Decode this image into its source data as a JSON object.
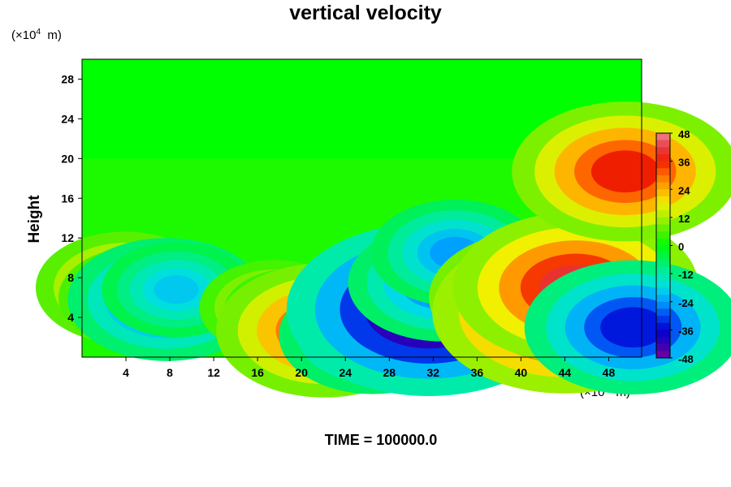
{
  "chart_data": {
    "type": "heatmap",
    "title": "vertical velocity",
    "xlabel": "",
    "ylabel": "Height",
    "x_unit": "m",
    "y_unit": "m",
    "unit_scale_base": "10",
    "unit_scale_exp": "4",
    "xlim": [
      0,
      51
    ],
    "ylim": [
      0,
      30
    ],
    "x_ticks": [
      4,
      8,
      12,
      16,
      20,
      24,
      28,
      32,
      36,
      40,
      44,
      48
    ],
    "y_ticks": [
      4,
      8,
      12,
      16,
      20,
      24,
      28
    ],
    "colorbar": {
      "ticks": [
        48,
        36,
        24,
        12,
        0,
        -12,
        -24,
        -36,
        -48
      ],
      "range": [
        -48,
        48
      ],
      "levels": 32
    },
    "features": [
      {
        "x": 3.9,
        "y": 7.0,
        "value": 26
      },
      {
        "x": 5.1,
        "y": 6.0,
        "value": 22
      },
      {
        "x": 7.7,
        "y": 5.8,
        "value": -30
      },
      {
        "x": 8.6,
        "y": 6.8,
        "value": -20
      },
      {
        "x": 17.5,
        "y": 5.0,
        "value": 20
      },
      {
        "x": 19.2,
        "y": 4.4,
        "value": 18
      },
      {
        "x": 22.1,
        "y": 2.7,
        "value": 34
      },
      {
        "x": 26.5,
        "y": 2.2,
        "value": -28
      },
      {
        "x": 31.6,
        "y": 4.8,
        "value": -48
      },
      {
        "x": 32.8,
        "y": 7.5,
        "value": -28
      },
      {
        "x": 34.0,
        "y": 10.5,
        "value": -24
      },
      {
        "x": 41.5,
        "y": 6.0,
        "value": 34
      },
      {
        "x": 44.0,
        "y": 4.5,
        "value": 44
      },
      {
        "x": 45.0,
        "y": 7.0,
        "value": 40
      },
      {
        "x": 50.2,
        "y": 3.0,
        "value": -34
      },
      {
        "x": 49.5,
        "y": 18.7,
        "value": 36
      }
    ]
  },
  "footer": {
    "time_label": "TIME = 100000.0"
  }
}
